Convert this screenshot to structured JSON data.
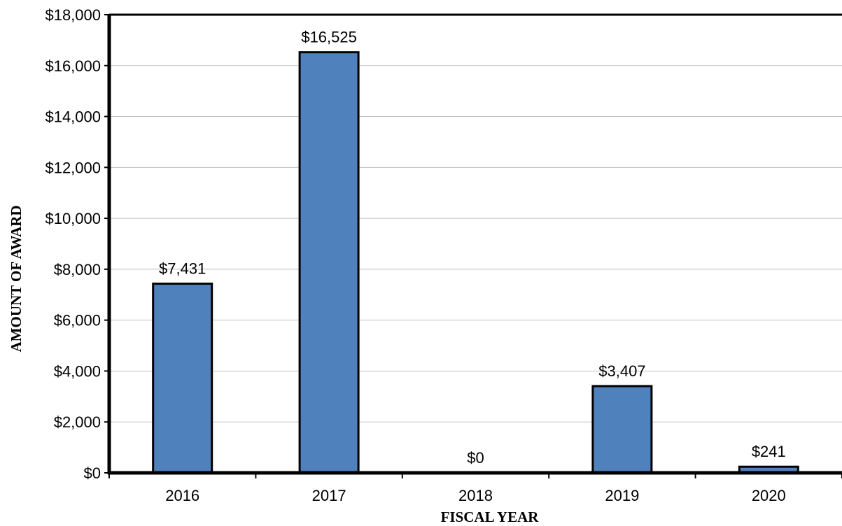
{
  "chart_data": {
    "type": "bar",
    "title": "",
    "xlabel": "FISCAL YEAR",
    "ylabel": "AMOUNT OF AWARD",
    "categories": [
      "2016",
      "2017",
      "2018",
      "2019",
      "2020"
    ],
    "values": [
      7431,
      16525,
      0,
      3407,
      241
    ],
    "data_labels": [
      "$7,431",
      "$16,525",
      "$0",
      "$3,407",
      "$241"
    ],
    "ylim": [
      0,
      18000
    ],
    "yticks": [
      0,
      2000,
      4000,
      6000,
      8000,
      10000,
      12000,
      14000,
      16000,
      18000
    ],
    "ytick_labels": [
      "$0",
      "$2,000",
      "$4,000",
      "$6,000",
      "$8,000",
      "$10,000",
      "$12,000",
      "$14,000",
      "$16,000",
      "$18,000"
    ],
    "grid": true,
    "legend": "none",
    "bar_color": "#4f81bd"
  }
}
